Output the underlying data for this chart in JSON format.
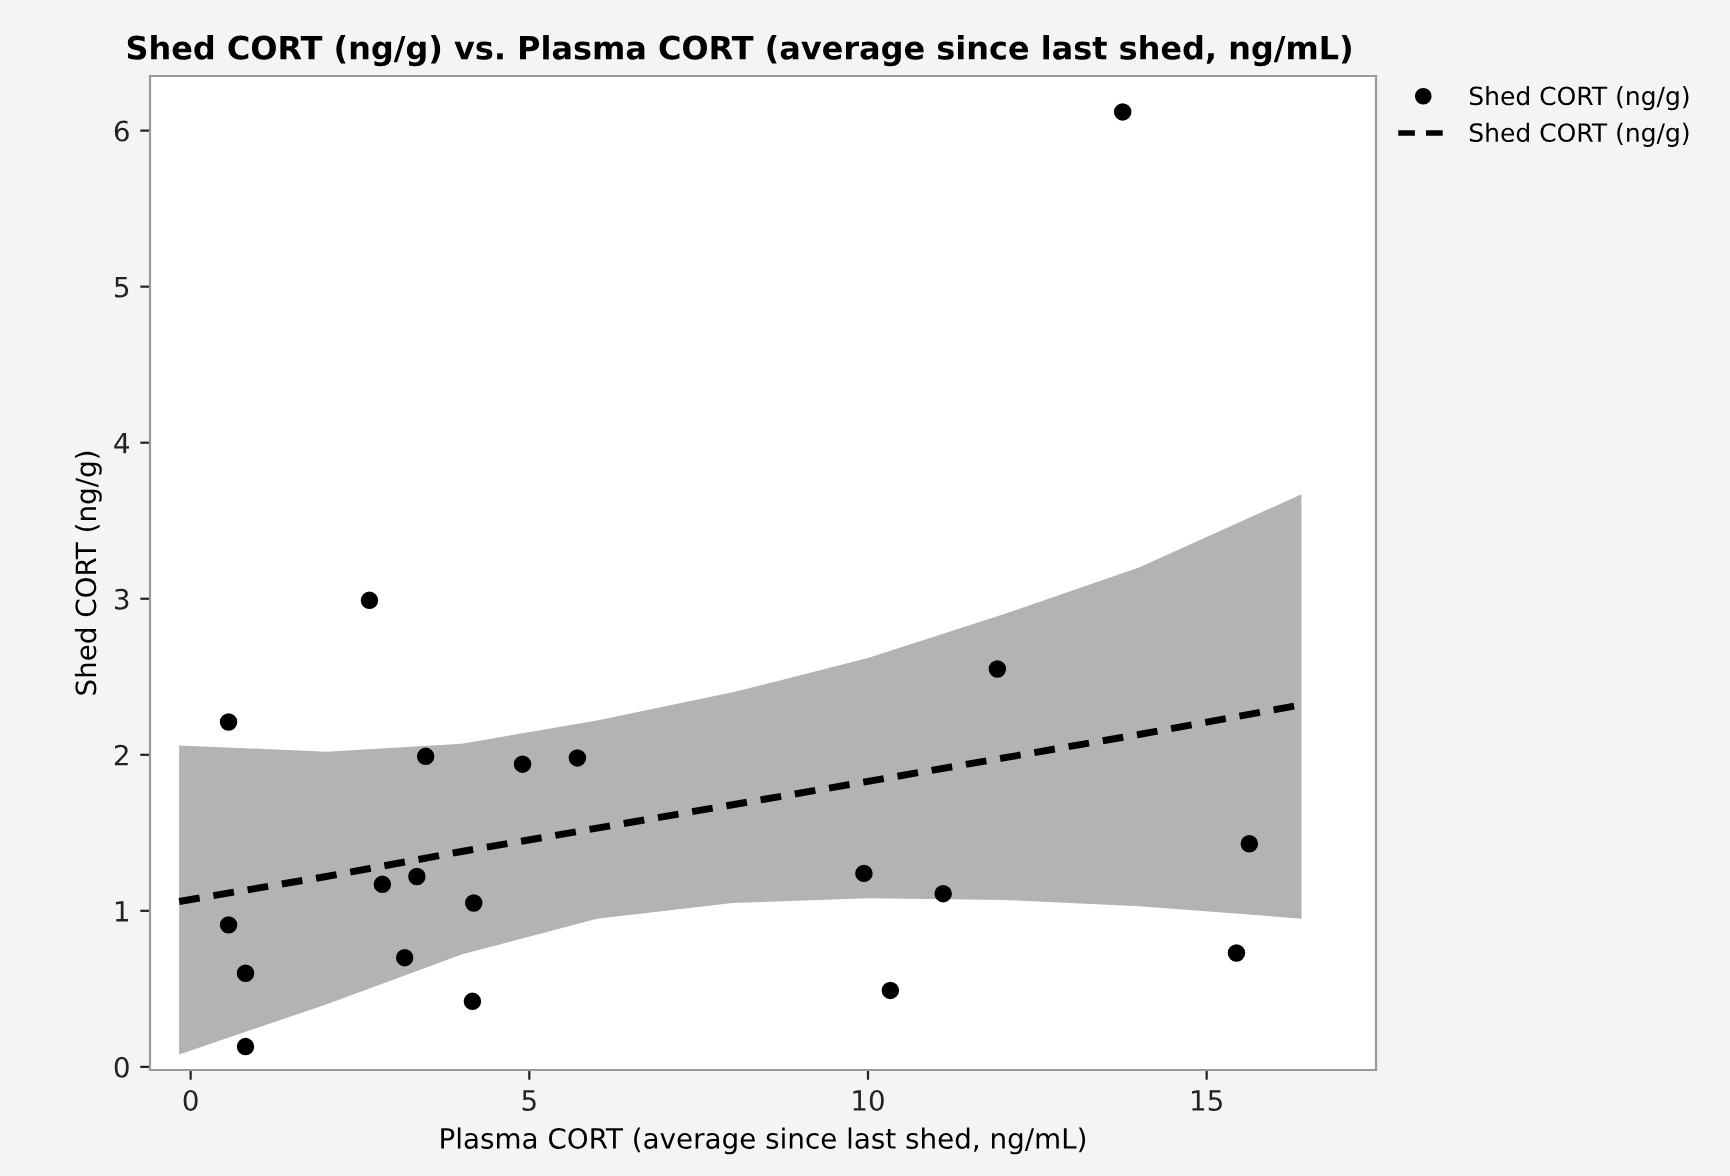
{
  "chart_data": {
    "type": "scatter",
    "title": "Shed CORT (ng/g) vs. Plasma CORT (average since last shed, ng/mL)",
    "xlabel": "Plasma CORT (average since last shed, ng/mL)",
    "ylabel": "Shed CORT (ng/g)",
    "xlim": [
      -0.6,
      17.5
    ],
    "ylim": [
      -0.02,
      6.35
    ],
    "xticks": [
      0,
      5,
      10,
      15
    ],
    "yticks": [
      0,
      1,
      2,
      3,
      4,
      5,
      6
    ],
    "grid": false,
    "legend": "top right",
    "series": [
      {
        "name": "Shed CORT (ng/g)",
        "color": "#000000",
        "marker": "circle",
        "x": [
          0.56,
          0.56,
          0.81,
          0.81,
          2.64,
          2.83,
          3.16,
          3.34,
          3.47,
          4.16,
          4.18,
          4.9,
          5.71,
          9.94,
          10.33,
          11.11,
          11.91,
          13.76,
          15.44,
          15.63
        ],
        "values": [
          2.21,
          0.91,
          0.6,
          0.13,
          2.99,
          1.17,
          0.7,
          1.22,
          1.99,
          0.42,
          1.05,
          1.94,
          1.98,
          1.24,
          0.49,
          1.11,
          2.55,
          6.12,
          0.73,
          1.43
        ]
      },
      {
        "name": "Shed CORT (ng/g)",
        "type": "line",
        "color": "#000000",
        "line_style": "dashed",
        "marker": "none",
        "x": [
          -0.17,
          2,
          4,
          6,
          8,
          10,
          12,
          14,
          16.4
        ],
        "values": [
          1.06,
          1.22,
          1.38,
          1.53,
          1.68,
          1.83,
          1.98,
          2.13,
          2.32
        ],
        "lower": [
          0.08,
          0.4,
          0.72,
          0.95,
          1.05,
          1.08,
          1.07,
          1.03,
          0.95
        ],
        "upper": [
          2.06,
          2.02,
          2.07,
          2.22,
          2.4,
          2.62,
          2.9,
          3.2,
          3.67
        ]
      }
    ]
  }
}
